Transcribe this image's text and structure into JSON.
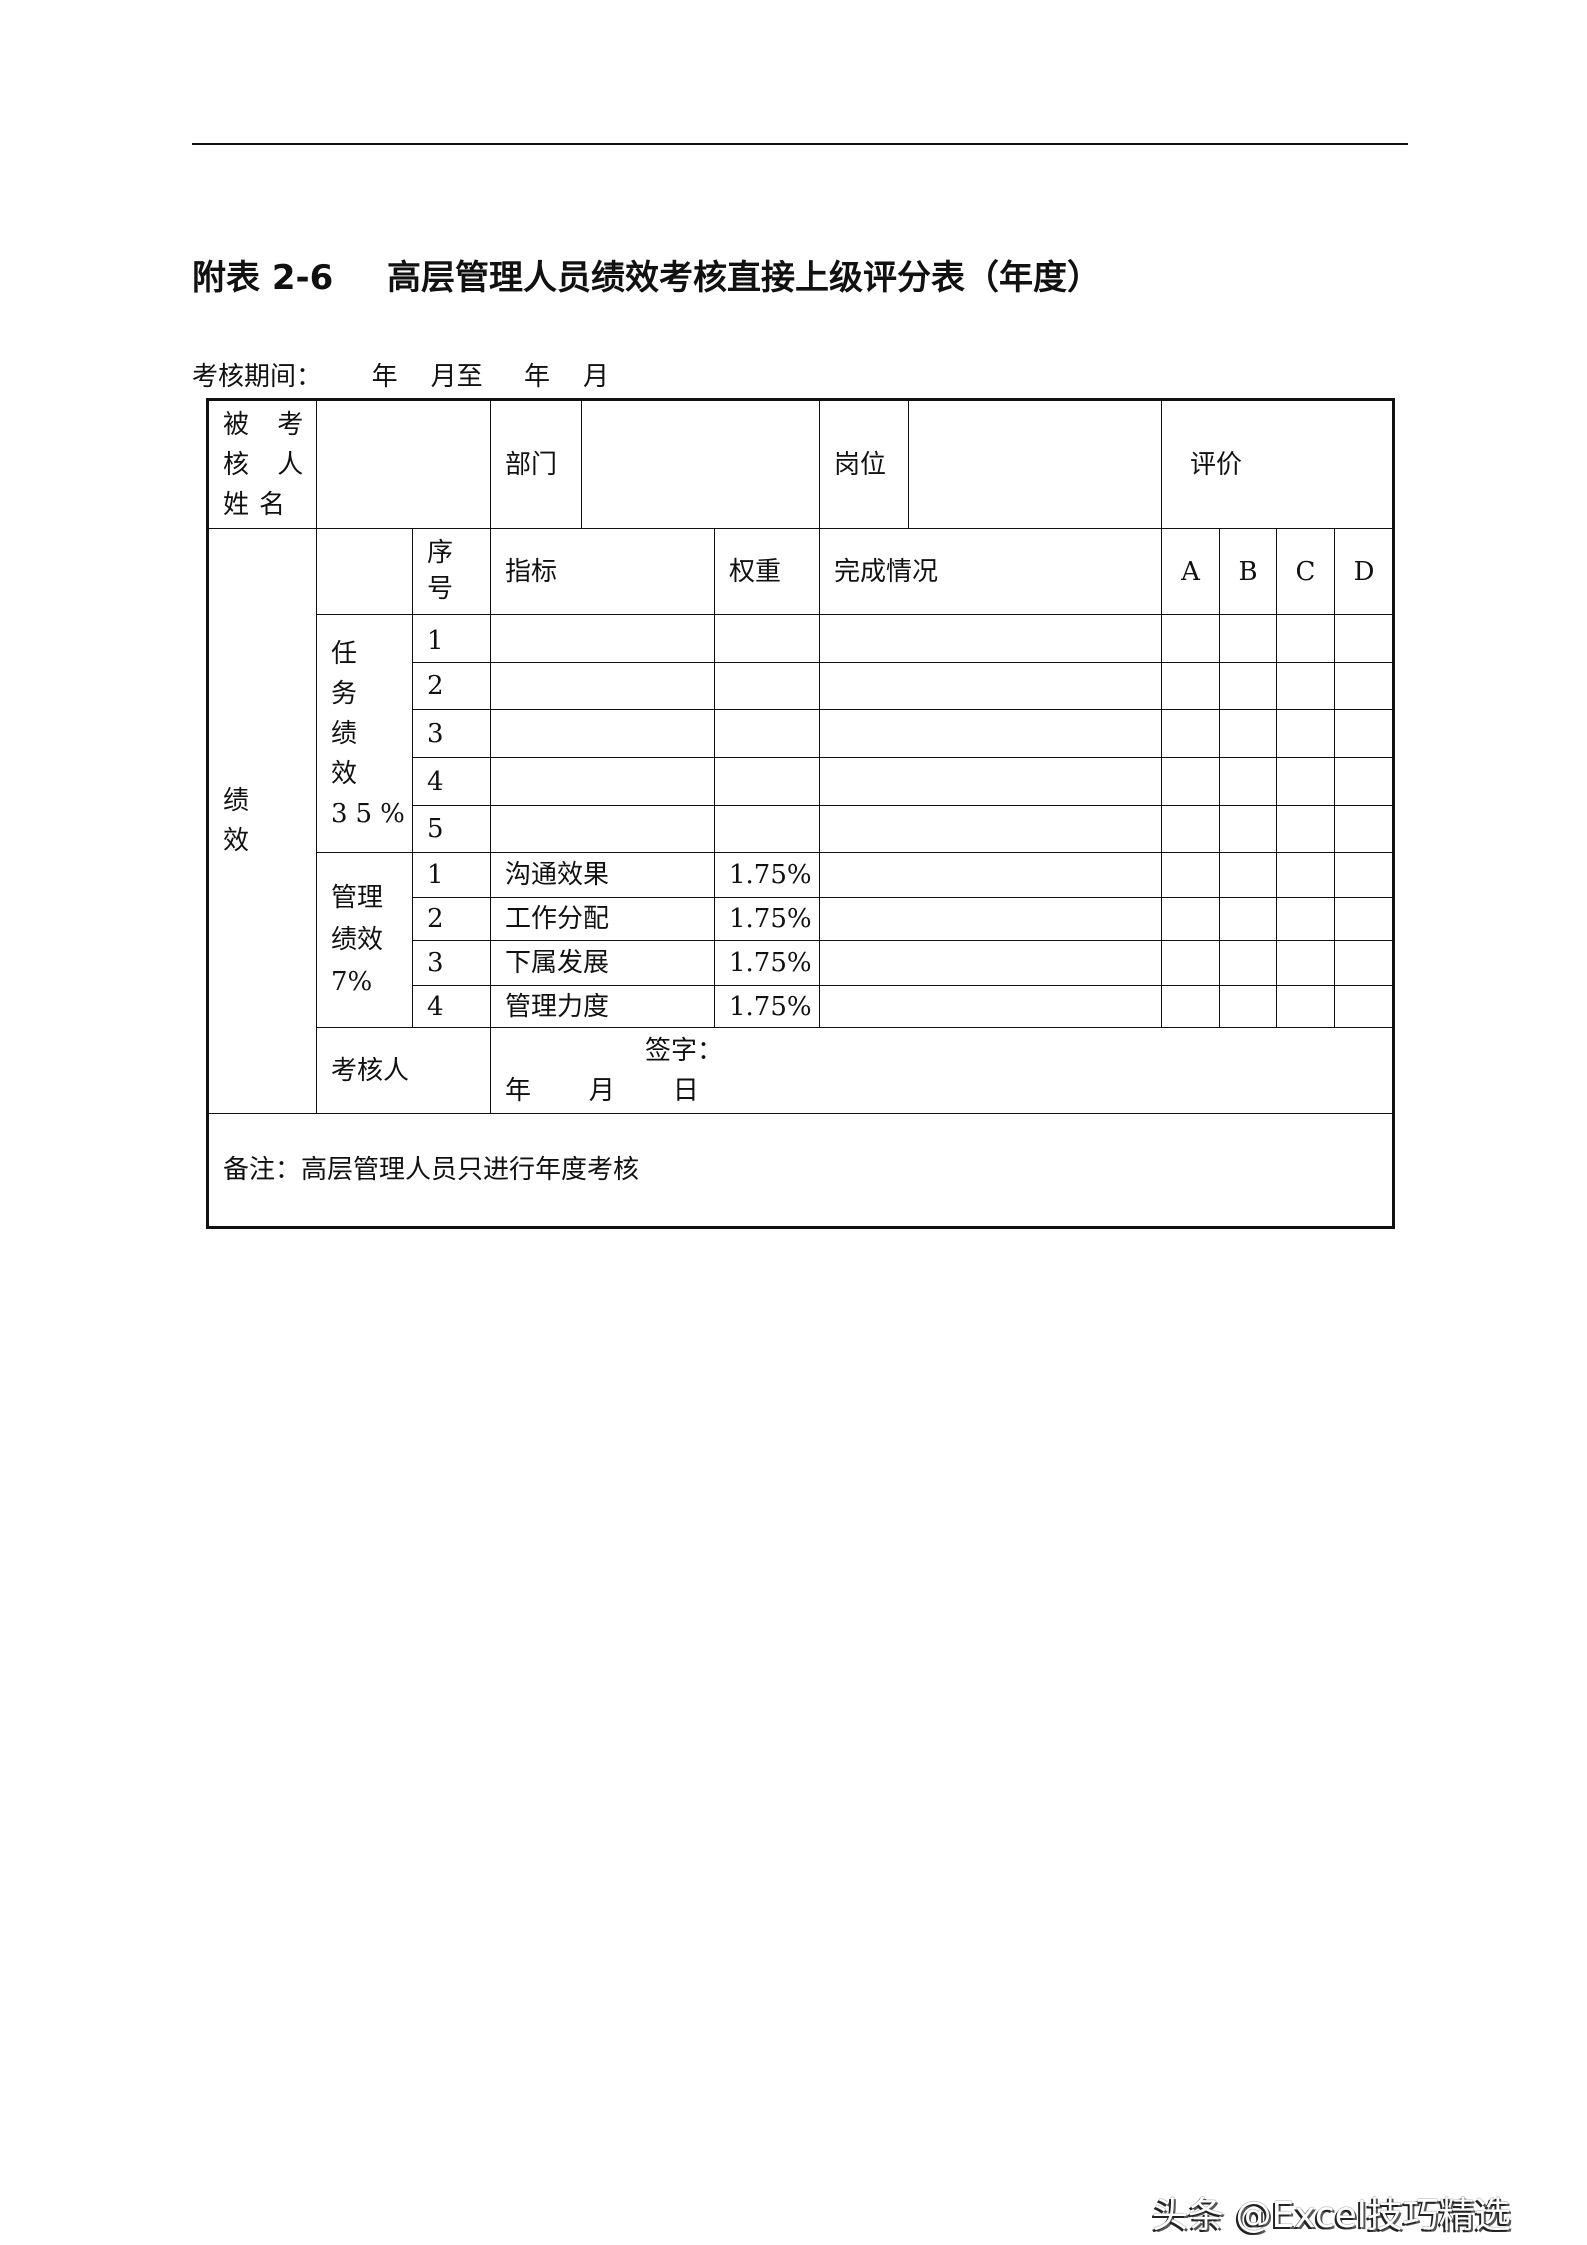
{
  "document": {
    "title_code": "附表 2-6",
    "title": "高层管理人员绩效考核直接上级评分表（年度）",
    "period_line": "考核期间：      年    月至     年    月"
  },
  "table": {
    "header": {
      "name_label": "被 考 核 人 姓名",
      "dept_label": "部门",
      "position_label": "岗位",
      "rating_label": "评价"
    },
    "columns": {
      "seq": "序号",
      "indicator": "指标",
      "weight": "权重",
      "completion": "完成情况",
      "grades": [
        "A",
        "B",
        "C",
        "D"
      ]
    },
    "section_label": "绩效",
    "task_group": {
      "label": "任 务 绩 效 35%",
      "rows": [
        {
          "seq": "1",
          "indicator": "",
          "weight": ""
        },
        {
          "seq": "2",
          "indicator": "",
          "weight": ""
        },
        {
          "seq": "3",
          "indicator": "",
          "weight": ""
        },
        {
          "seq": "4",
          "indicator": "",
          "weight": ""
        },
        {
          "seq": "5",
          "indicator": "",
          "weight": ""
        }
      ]
    },
    "mgmt_group": {
      "label": "管理绩效7%",
      "rows": [
        {
          "seq": "1",
          "indicator": "沟通效果",
          "weight": "1.75%"
        },
        {
          "seq": "2",
          "indicator": "工作分配",
          "weight": "1.75%"
        },
        {
          "seq": "3",
          "indicator": "下属发展",
          "weight": "1.75%"
        },
        {
          "seq": "4",
          "indicator": "管理力度",
          "weight": "1.75%"
        }
      ]
    },
    "reviewer_label": "考核人",
    "signature_label": "签字：",
    "date_label": "年       月       日",
    "note": "备注：高层管理人员只进行年度考核"
  },
  "watermark": "头条 @Excel技巧精选"
}
